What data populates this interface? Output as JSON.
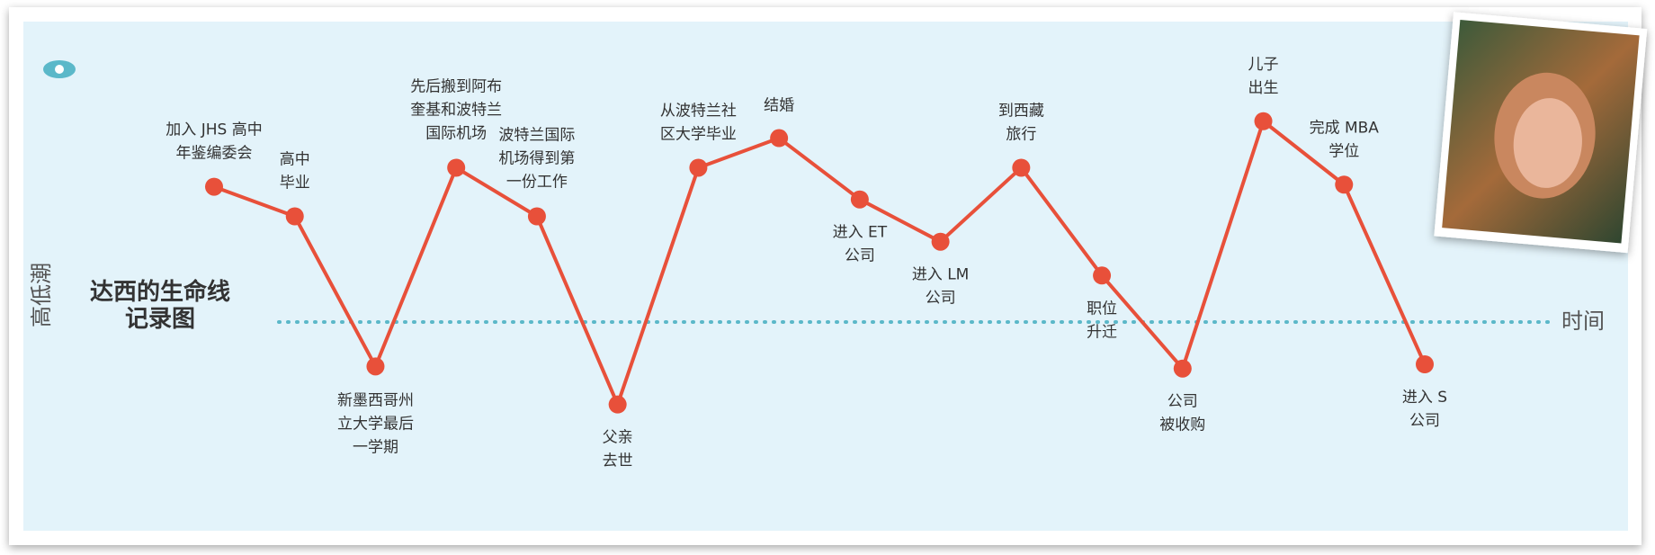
{
  "chart_data": {
    "type": "line",
    "title": "达西的生命线\n记录图",
    "ylabel": "高低潮",
    "xlabel": "时间",
    "categories": [
      "加入 JHS 高中\n年鉴编委会",
      "高中\n毕业",
      "新墨西哥州\n立大学最后\n一学期",
      "先后搬到阿布\n奎基和波特兰\n国际机场",
      "波特兰国际\n机场得到第\n一份工作",
      "父亲\n去世",
      "从波特兰社\n区大学毕业",
      "结婚",
      "进入 ET\n公司",
      "进入 LM\n公司",
      "到西藏\n旅行",
      "职位\n升迁",
      "公司\n被收购",
      "儿子\n出生",
      "完成 MBA\n学位",
      "进入 S\n公司"
    ],
    "values": [
      6.4,
      5,
      -2.1,
      7.3,
      5,
      -3.9,
      7.3,
      8.7,
      5.8,
      3.8,
      7.3,
      2.2,
      -2.2,
      9.5,
      6.5,
      -2
    ],
    "color": "#e8503a",
    "ylim": [
      -6,
      10
    ]
  }
}
